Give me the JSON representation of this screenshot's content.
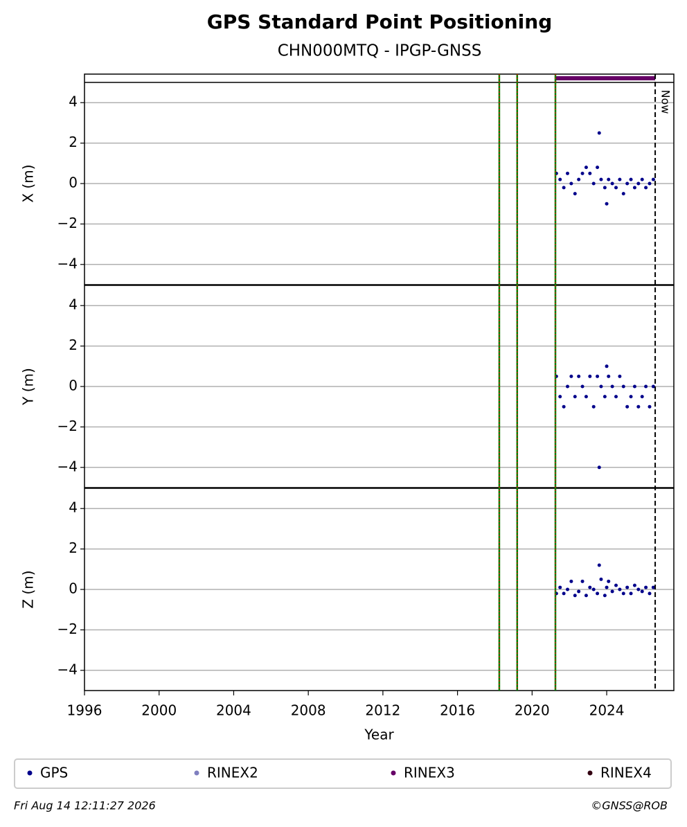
{
  "chart_data": [
    {
      "type": "scatter",
      "title": "GPS Standard Point Positioning",
      "subtitle": "CHN000MTQ - IPGP-GNSS",
      "ylabel": "X (m)",
      "x": [
        2021.3,
        2021.5,
        2021.7,
        2021.9,
        2022.1,
        2022.3,
        2022.5,
        2022.7,
        2022.9,
        2023.1,
        2023.3,
        2023.5,
        2023.6,
        2023.7,
        2023.9,
        2024.0,
        2024.1,
        2024.3,
        2024.5,
        2024.7,
        2024.9,
        2025.1,
        2025.3,
        2025.5,
        2025.7,
        2025.9,
        2026.1,
        2026.3,
        2026.5
      ],
      "series": [
        {
          "name": "GPS",
          "color": "#00008b",
          "values": [
            0.5,
            0.2,
            -0.2,
            0.5,
            0,
            -0.5,
            0.2,
            0.5,
            0.8,
            0.5,
            0,
            0.8,
            2.5,
            0.2,
            -0.2,
            -1,
            0.2,
            0,
            -0.2,
            0.2,
            -0.5,
            0,
            0.2,
            -0.2,
            0,
            0.2,
            -0.2,
            0,
            0.2
          ]
        }
      ],
      "rinex3_span": [
        2021.25,
        2026.6
      ],
      "xlim": [
        1996,
        2027.6
      ],
      "ylim": [
        -5,
        5
      ],
      "yticks": [
        {
          "value": -4,
          "label": "−4"
        },
        {
          "value": -2,
          "label": "−2"
        },
        0,
        2,
        4
      ],
      "grid": true
    },
    {
      "type": "scatter",
      "ylabel": "Y (m)",
      "x": [
        2021.3,
        2021.5,
        2021.7,
        2021.9,
        2022.1,
        2022.3,
        2022.5,
        2022.7,
        2022.9,
        2023.1,
        2023.3,
        2023.5,
        2023.6,
        2023.7,
        2023.9,
        2024.0,
        2024.1,
        2024.3,
        2024.5,
        2024.7,
        2024.9,
        2025.1,
        2025.3,
        2025.5,
        2025.7,
        2025.9,
        2026.1,
        2026.3,
        2026.5
      ],
      "series": [
        {
          "name": "GPS",
          "color": "#00008b",
          "values": [
            0.5,
            -0.5,
            -1,
            0,
            0.5,
            -0.5,
            0.5,
            0,
            -0.5,
            0.5,
            -1,
            0.5,
            -4,
            0,
            -0.5,
            1,
            0.5,
            0,
            -0.5,
            0.5,
            0,
            -1,
            -0.5,
            0,
            -1,
            -0.5,
            0,
            -1,
            0
          ]
        }
      ],
      "xlim": [
        1996,
        2027.6
      ],
      "ylim": [
        -5,
        5
      ],
      "yticks": [
        {
          "value": -4,
          "label": "−4"
        },
        {
          "value": -2,
          "label": "−2"
        },
        0,
        2,
        4
      ],
      "grid": true
    },
    {
      "type": "scatter",
      "ylabel": "Z (m)",
      "xlabel": "Year",
      "x": [
        2021.3,
        2021.5,
        2021.7,
        2021.9,
        2022.1,
        2022.3,
        2022.5,
        2022.7,
        2022.9,
        2023.1,
        2023.3,
        2023.5,
        2023.6,
        2023.7,
        2023.9,
        2024.0,
        2024.1,
        2024.3,
        2024.5,
        2024.7,
        2024.9,
        2025.1,
        2025.3,
        2025.5,
        2025.7,
        2025.9,
        2026.1,
        2026.3,
        2026.5
      ],
      "series": [
        {
          "name": "GPS",
          "color": "#00008b",
          "values": [
            -0.2,
            0.1,
            -0.2,
            0,
            0.4,
            -0.3,
            -0.1,
            0.4,
            -0.3,
            0.1,
            0,
            -0.2,
            1.2,
            0.5,
            -0.3,
            0.1,
            0.4,
            -0.1,
            0.2,
            0,
            -0.2,
            0.1,
            -0.2,
            0.2,
            0,
            -0.1,
            0.1,
            -0.2,
            0.1
          ]
        }
      ],
      "xlim": [
        1996,
        2027.6
      ],
      "ylim": [
        -5,
        5
      ],
      "xticks": [
        1996,
        2000,
        2004,
        2008,
        2012,
        2016,
        2020,
        2024
      ],
      "yticks": [
        {
          "value": -4,
          "label": "−4"
        },
        {
          "value": -2,
          "label": "−2"
        },
        0,
        2,
        4
      ],
      "grid": true
    }
  ],
  "events": [
    2018.24,
    2019.2,
    2021.25
  ],
  "now": 2026.6,
  "now_label": "Now",
  "legend": [
    {
      "name": "GPS",
      "color": "#00008b"
    },
    {
      "name": "RINEX2",
      "color": "#7f7fbf"
    },
    {
      "name": "RINEX3",
      "color": "#660066"
    },
    {
      "name": "RINEX4",
      "color": "#330011"
    }
  ],
  "footer": {
    "date": "Fri Aug 14 12:11:27 2026",
    "credit": "©GNSS@ROB"
  }
}
